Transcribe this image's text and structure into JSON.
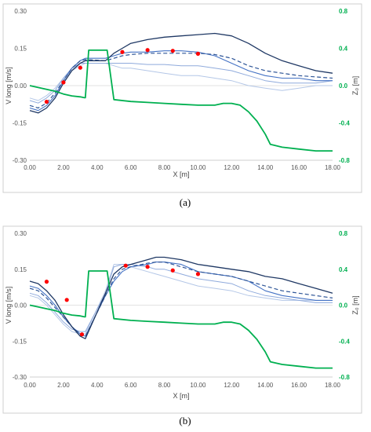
{
  "colors": {
    "dark_blue": "#1f3864",
    "mid_blue": "#4472c4",
    "light_blue": "#8faadc",
    "pale_blue": "#b4c7e7",
    "dashed_blue": "#2e5597",
    "green": "#00b050",
    "red": "#ff0000"
  },
  "chart_data": [
    {
      "type": "line",
      "caption": "(a)",
      "xlabel": "X [m]",
      "ylabel": "V long [m/s]",
      "y2label": "Z₀ [m]",
      "xlim": [
        0,
        18
      ],
      "ylim": [
        -0.3,
        0.3
      ],
      "y2lim": [
        -0.8,
        0.8
      ],
      "x_ticks": [
        "0.00",
        "2.00",
        "4.00",
        "6.00",
        "8.00",
        "10.00",
        "12.00",
        "14.00",
        "16.00",
        "18.00"
      ],
      "y_ticks": [
        "0.30",
        "0.15",
        "0.00",
        "-0.15",
        "-0.30"
      ],
      "y2_ticks": [
        "0.8",
        "0.4",
        "0.0",
        "-0.4",
        "-0.8"
      ],
      "series": [
        {
          "style": "dark",
          "x": [
            0,
            0.5,
            1,
            1.5,
            2,
            2.5,
            3,
            3.3,
            4.5,
            5,
            5.5,
            6,
            7,
            8,
            9,
            10,
            11,
            12,
            13,
            14,
            15,
            16,
            17,
            18
          ],
          "y": [
            -0.1,
            -0.11,
            -0.09,
            -0.05,
            0.01,
            0.06,
            0.09,
            0.1,
            0.1,
            0.13,
            0.15,
            0.17,
            0.185,
            0.195,
            0.2,
            0.205,
            0.21,
            0.2,
            0.17,
            0.13,
            0.1,
            0.08,
            0.06,
            0.05
          ]
        },
        {
          "style": "mid",
          "x": [
            0,
            0.5,
            1,
            1.5,
            2,
            2.5,
            3,
            3.3,
            4.5,
            5,
            5.5,
            6,
            7,
            8,
            9,
            10,
            11,
            12,
            13,
            14,
            15,
            16,
            17,
            18
          ],
          "y": [
            -0.09,
            -0.1,
            -0.08,
            -0.04,
            0.02,
            0.07,
            0.1,
            0.11,
            0.11,
            0.12,
            0.13,
            0.135,
            0.135,
            0.14,
            0.14,
            0.135,
            0.12,
            0.09,
            0.06,
            0.04,
            0.03,
            0.03,
            0.02,
            0.02
          ]
        },
        {
          "style": "light",
          "x": [
            0,
            0.5,
            1,
            1.5,
            2,
            2.5,
            3,
            3.3,
            4.5,
            5,
            5.5,
            6,
            7,
            8,
            9,
            10,
            11,
            12,
            13,
            14,
            15,
            16,
            17,
            18
          ],
          "y": [
            -0.06,
            -0.07,
            -0.05,
            -0.02,
            0.03,
            0.07,
            0.09,
            0.09,
            0.09,
            0.09,
            0.09,
            0.09,
            0.085,
            0.085,
            0.08,
            0.08,
            0.07,
            0.06,
            0.04,
            0.02,
            0.01,
            0.01,
            0.01,
            0.02
          ]
        },
        {
          "style": "pale",
          "x": [
            0,
            0.5,
            1,
            1.5,
            2,
            2.5,
            3,
            3.3,
            4.5,
            5,
            5.5,
            6,
            7,
            8,
            9,
            10,
            11,
            12,
            13,
            14,
            15,
            16,
            17,
            18
          ],
          "y": [
            -0.05,
            -0.06,
            -0.04,
            -0.01,
            0.03,
            0.06,
            0.08,
            0.09,
            0.09,
            0.08,
            0.07,
            0.07,
            0.06,
            0.05,
            0.04,
            0.04,
            0.03,
            0.02,
            0.0,
            -0.01,
            -0.02,
            -0.01,
            0.0,
            0.0
          ]
        },
        {
          "style": "dashed",
          "x": [
            0,
            0.5,
            1,
            1.5,
            2,
            2.5,
            3,
            3.3,
            4.5,
            5,
            5.5,
            6,
            7,
            8,
            9,
            10,
            11,
            12,
            13,
            14,
            15,
            16,
            17,
            18
          ],
          "y": [
            -0.08,
            -0.09,
            -0.07,
            -0.03,
            0.02,
            0.07,
            0.1,
            0.105,
            0.1,
            0.11,
            0.12,
            0.125,
            0.13,
            0.13,
            0.13,
            0.13,
            0.125,
            0.11,
            0.08,
            0.06,
            0.05,
            0.04,
            0.035,
            0.03
          ]
        }
      ],
      "bed_z0": {
        "x": [
          0,
          0.5,
          1,
          1.5,
          2,
          2.5,
          3,
          3.25,
          3.3,
          3.5,
          4.5,
          4.6,
          5,
          6,
          7,
          8,
          9,
          10,
          11,
          11.5,
          12,
          12.5,
          13,
          13.5,
          14,
          14.3,
          15,
          16,
          17,
          18
        ],
        "y": [
          0.0,
          -0.02,
          -0.04,
          -0.06,
          -0.09,
          -0.11,
          -0.12,
          -0.13,
          -0.13,
          0.38,
          0.38,
          0.38,
          -0.15,
          -0.17,
          -0.18,
          -0.19,
          -0.2,
          -0.21,
          -0.21,
          -0.19,
          -0.19,
          -0.21,
          -0.28,
          -0.38,
          -0.52,
          -0.63,
          -0.66,
          -0.68,
          -0.7,
          -0.7
        ]
      },
      "measured": {
        "x": [
          1.0,
          2.0,
          3.0,
          5.5,
          7.0,
          8.5,
          10.0
        ],
        "y": [
          -0.065,
          0.013,
          0.072,
          0.135,
          0.143,
          0.14,
          0.128
        ]
      }
    },
    {
      "type": "line",
      "caption": "(b)",
      "xlabel": "X [m]",
      "ylabel": "V long [m/s]",
      "y2label": "Z₀ [m]",
      "xlim": [
        0,
        18
      ],
      "ylim": [
        -0.3,
        0.3
      ],
      "y2lim": [
        -0.8,
        0.8
      ],
      "x_ticks": [
        "0.00",
        "2.00",
        "4.00",
        "6.00",
        "8.00",
        "10.00",
        "12.00",
        "14.00",
        "16.00",
        "18.00"
      ],
      "y_ticks": [
        "0.30",
        "0.15",
        "0.00",
        "-0.15",
        "-0.30"
      ],
      "y2_ticks": [
        "0.8",
        "0.4",
        "0.0",
        "-0.4",
        "-0.8"
      ],
      "series": [
        {
          "style": "dark",
          "x": [
            0,
            0.5,
            1,
            1.5,
            2,
            2.5,
            3,
            3.3,
            4.5,
            5,
            5.5,
            6,
            7,
            7.5,
            8,
            9,
            10,
            11,
            12,
            13,
            14,
            15,
            16,
            17,
            18
          ],
          "y": [
            0.1,
            0.09,
            0.06,
            0.02,
            -0.04,
            -0.09,
            -0.13,
            -0.14,
            0.05,
            0.13,
            0.16,
            0.17,
            0.19,
            0.2,
            0.2,
            0.19,
            0.17,
            0.16,
            0.15,
            0.14,
            0.12,
            0.11,
            0.09,
            0.07,
            0.05
          ]
        },
        {
          "style": "mid",
          "x": [
            0,
            0.5,
            1,
            1.5,
            2,
            2.5,
            3,
            3.3,
            4.5,
            5,
            5.5,
            6,
            7,
            7.5,
            8,
            9,
            10,
            11,
            12,
            13,
            14,
            15,
            16,
            17,
            18
          ],
          "y": [
            0.08,
            0.07,
            0.04,
            0.0,
            -0.05,
            -0.09,
            -0.12,
            -0.13,
            0.04,
            0.1,
            0.14,
            0.16,
            0.17,
            0.18,
            0.18,
            0.17,
            0.14,
            0.13,
            0.12,
            0.1,
            0.06,
            0.04,
            0.03,
            0.02,
            0.02
          ]
        },
        {
          "style": "light",
          "x": [
            0,
            0.5,
            1,
            1.5,
            2,
            2.5,
            3,
            3.3,
            4.5,
            5,
            5.5,
            6,
            7,
            7.5,
            8,
            9,
            10,
            11,
            12,
            13,
            14,
            15,
            16,
            17,
            18
          ],
          "y": [
            0.05,
            0.04,
            0.01,
            -0.03,
            -0.07,
            -0.1,
            -0.11,
            -0.11,
            0.05,
            0.16,
            0.17,
            0.17,
            0.16,
            0.15,
            0.15,
            0.13,
            0.11,
            0.1,
            0.09,
            0.06,
            0.04,
            0.03,
            0.02,
            0.01,
            0.01
          ]
        },
        {
          "style": "pale",
          "x": [
            0,
            0.5,
            1,
            1.5,
            2,
            2.5,
            3,
            3.3,
            4.5,
            5,
            5.5,
            6,
            7,
            7.5,
            8,
            9,
            10,
            11,
            12,
            13,
            14,
            15,
            16,
            17,
            18
          ],
          "y": [
            0.04,
            0.03,
            0.0,
            -0.04,
            -0.08,
            -0.11,
            -0.12,
            -0.12,
            0.06,
            0.17,
            0.17,
            0.16,
            0.14,
            0.13,
            0.12,
            0.1,
            0.08,
            0.07,
            0.06,
            0.04,
            0.03,
            0.02,
            0.02,
            0.02,
            0.02
          ]
        },
        {
          "style": "dashed",
          "x": [
            0,
            0.5,
            1,
            1.5,
            2,
            2.5,
            3,
            3.3,
            4.5,
            5,
            5.5,
            6,
            7,
            7.5,
            8,
            9,
            10,
            11,
            12,
            13,
            14,
            15,
            16,
            17,
            18
          ],
          "y": [
            0.07,
            0.06,
            0.03,
            -0.01,
            -0.05,
            -0.09,
            -0.12,
            -0.13,
            0.04,
            0.11,
            0.15,
            0.16,
            0.175,
            0.18,
            0.18,
            0.16,
            0.14,
            0.13,
            0.12,
            0.1,
            0.08,
            0.06,
            0.05,
            0.04,
            0.03
          ]
        }
      ],
      "bed_z0": {
        "x": [
          0,
          0.5,
          1,
          1.5,
          2,
          2.5,
          3,
          3.25,
          3.3,
          3.5,
          4.5,
          4.6,
          5,
          6,
          7,
          8,
          9,
          10,
          11,
          11.5,
          12,
          12.5,
          13,
          13.5,
          14,
          14.3,
          15,
          16,
          17,
          18
        ],
        "y": [
          0.0,
          -0.02,
          -0.04,
          -0.06,
          -0.09,
          -0.11,
          -0.12,
          -0.13,
          -0.13,
          0.38,
          0.38,
          0.38,
          -0.15,
          -0.17,
          -0.18,
          -0.19,
          -0.2,
          -0.21,
          -0.21,
          -0.19,
          -0.19,
          -0.21,
          -0.28,
          -0.38,
          -0.52,
          -0.63,
          -0.66,
          -0.68,
          -0.7,
          -0.7
        ]
      },
      "measured": {
        "x": [
          1.0,
          2.2,
          3.1,
          5.7,
          7.0,
          8.5,
          10.0
        ],
        "y": [
          0.098,
          0.022,
          -0.122,
          0.165,
          0.16,
          0.145,
          0.13
        ]
      }
    }
  ]
}
